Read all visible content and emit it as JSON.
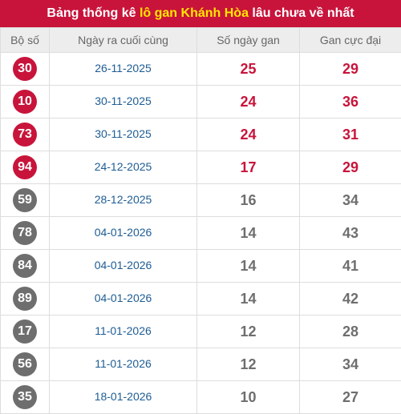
{
  "title": {
    "prefix": "Bảng thống kê ",
    "highlight": "lô gan Khánh Hòa",
    "suffix": " lâu chưa về nhất"
  },
  "headers": [
    "Bộ số",
    "Ngày ra cuối cùng",
    "Số ngày gan",
    "Gan cực đại"
  ],
  "colors": {
    "accent": "#c8143b",
    "highlight": "#ffe600",
    "gray": "#6e6e6e",
    "date": "#1d5c94"
  },
  "rows": [
    {
      "number": "30",
      "last_date": "26-11-2025",
      "days": "25",
      "max": "29",
      "highlight": true
    },
    {
      "number": "10",
      "last_date": "30-11-2025",
      "days": "24",
      "max": "36",
      "highlight": true
    },
    {
      "number": "73",
      "last_date": "30-11-2025",
      "days": "24",
      "max": "31",
      "highlight": true
    },
    {
      "number": "94",
      "last_date": "24-12-2025",
      "days": "17",
      "max": "29",
      "highlight": true
    },
    {
      "number": "59",
      "last_date": "28-12-2025",
      "days": "16",
      "max": "34",
      "highlight": false
    },
    {
      "number": "78",
      "last_date": "04-01-2026",
      "days": "14",
      "max": "43",
      "highlight": false
    },
    {
      "number": "84",
      "last_date": "04-01-2026",
      "days": "14",
      "max": "41",
      "highlight": false
    },
    {
      "number": "89",
      "last_date": "04-01-2026",
      "days": "14",
      "max": "42",
      "highlight": false
    },
    {
      "number": "17",
      "last_date": "11-01-2026",
      "days": "12",
      "max": "28",
      "highlight": false
    },
    {
      "number": "56",
      "last_date": "11-01-2026",
      "days": "12",
      "max": "34",
      "highlight": false
    },
    {
      "number": "35",
      "last_date": "18-01-2026",
      "days": "10",
      "max": "27",
      "highlight": false
    }
  ]
}
